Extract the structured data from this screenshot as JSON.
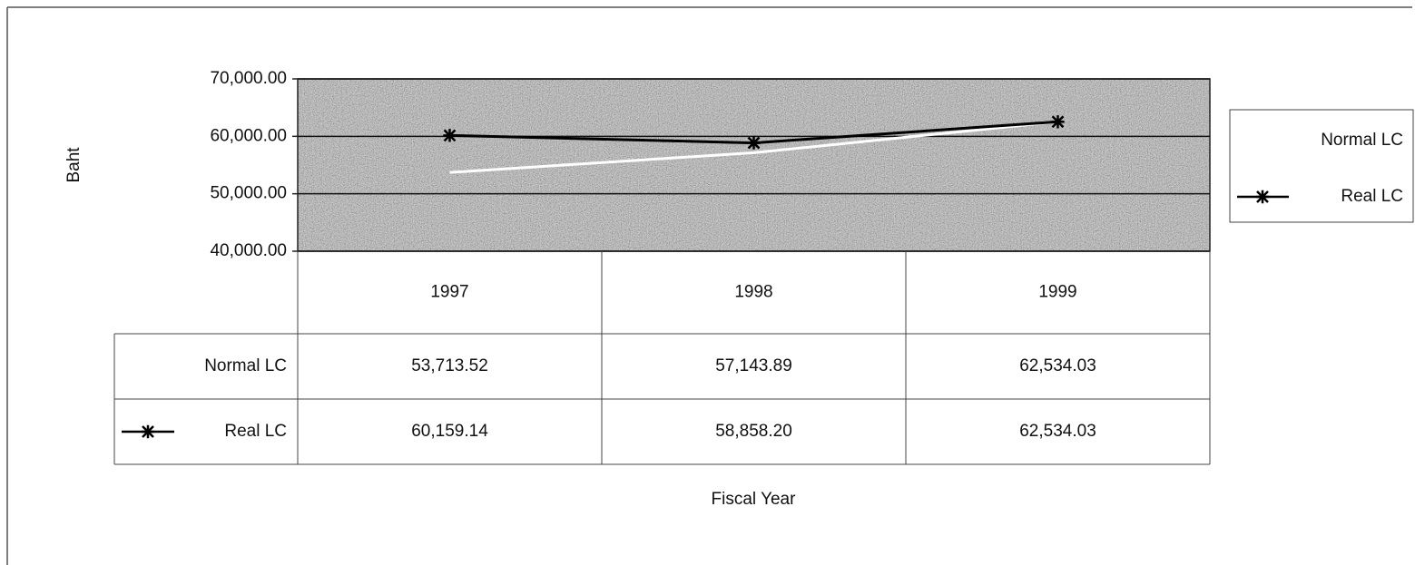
{
  "chart_data": {
    "type": "line",
    "y_label": "Baht",
    "x_label": "Fiscal Year",
    "categories": [
      "1997",
      "1998",
      "1999"
    ],
    "series": [
      {
        "name": "Normal LC",
        "color": "#ffffff",
        "marker": "none",
        "values": [
          53713.52,
          57143.89,
          62534.03
        ],
        "value_labels": [
          "53,713.52",
          "57,143.89",
          "62,534.03"
        ]
      },
      {
        "name": "Real LC",
        "color": "#000000",
        "marker": "star",
        "values": [
          60159.14,
          58858.2,
          62534.03
        ],
        "value_labels": [
          "60,159.14",
          "58,858.20",
          "62,534.03"
        ]
      }
    ],
    "ylim": [
      40000,
      70000
    ],
    "yticks": [
      {
        "value": 40000,
        "label": "40,000.00"
      },
      {
        "value": 50000,
        "label": "50,000.00"
      },
      {
        "value": 60000,
        "label": "60,000.00"
      },
      {
        "value": 70000,
        "label": "70,000.00"
      }
    ],
    "grid": true,
    "legend": "right",
    "data_table": true
  }
}
